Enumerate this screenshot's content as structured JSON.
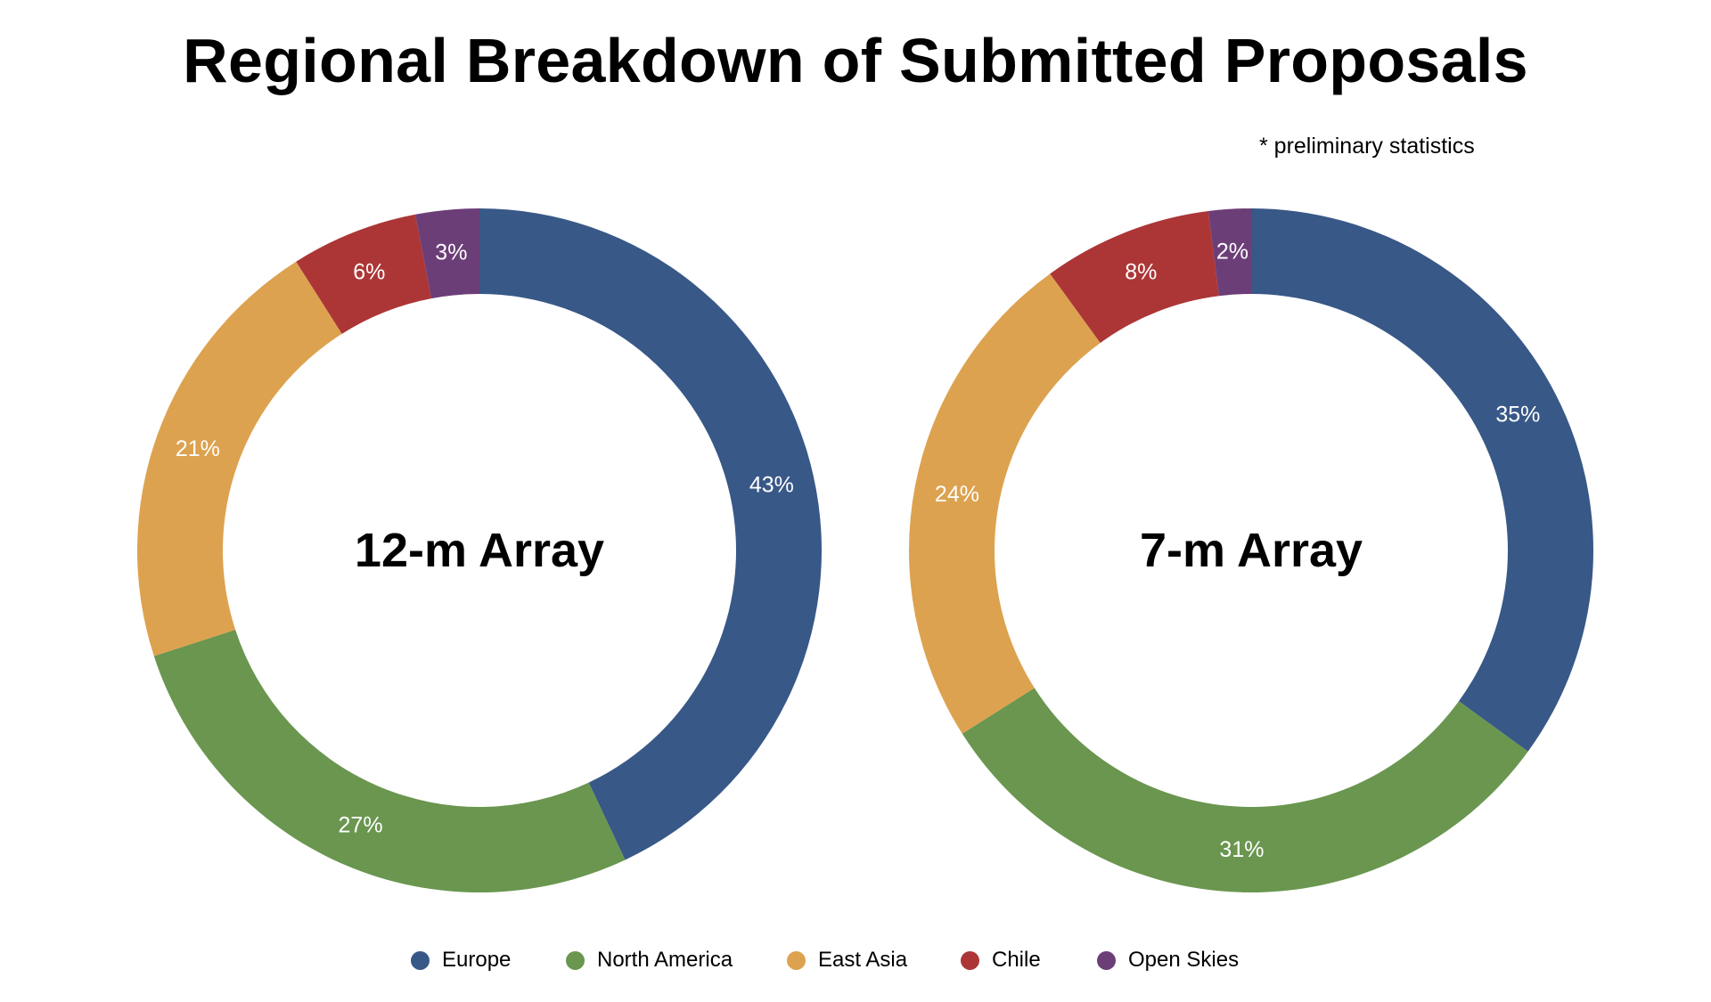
{
  "title": "Regional Breakdown of Submitted Proposals",
  "note": "* preliminary statistics",
  "colors": {
    "Europe": "#385887",
    "North America": "#6a964f",
    "East Asia": "#dda24f",
    "Chile": "#ac3636",
    "Open Skies": "#6c3e78"
  },
  "legend": [
    {
      "name": "Europe"
    },
    {
      "name": "North America"
    },
    {
      "name": "East Asia"
    },
    {
      "name": "Chile"
    },
    {
      "name": "Open Skies"
    }
  ],
  "chart_data": [
    {
      "type": "pie",
      "title": "12-m Array",
      "categories": [
        "Europe",
        "North America",
        "East Asia",
        "Chile",
        "Open Skies"
      ],
      "values": [
        43,
        27,
        21,
        6,
        3
      ],
      "labels": [
        "43%",
        "27%",
        "21%",
        "6%",
        "3%"
      ],
      "legend_position": "bottom"
    },
    {
      "type": "pie",
      "title": "7-m Array",
      "categories": [
        "Europe",
        "North America",
        "East Asia",
        "Chile",
        "Open Skies"
      ],
      "values": [
        35,
        31,
        24,
        8,
        2
      ],
      "labels": [
        "35%",
        "31%",
        "24%",
        "8%",
        "2%"
      ],
      "legend_position": "bottom"
    }
  ]
}
